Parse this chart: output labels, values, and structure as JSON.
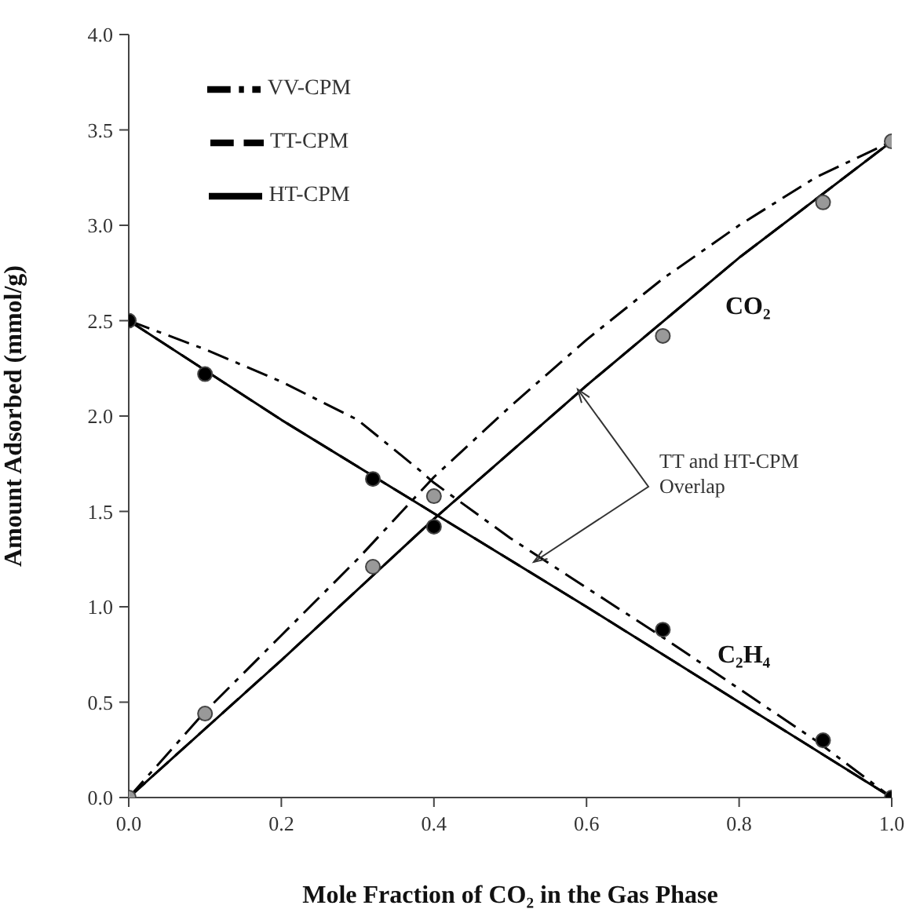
{
  "chart_data": {
    "type": "line",
    "xlabel": "Mole Fraction of CO₂ in the Gas Phase",
    "ylabel": "Amount Adsorbed (mmol/g)",
    "xlim": [
      0,
      1
    ],
    "ylim": [
      0,
      4
    ],
    "xticks": [
      {
        "value": 0,
        "label": "0.0"
      },
      0.2,
      0.4,
      0.6,
      0.8,
      {
        "value": 1,
        "label": "1.0"
      }
    ],
    "yticks": [
      {
        "value": 0,
        "label": "0.0"
      },
      0.5,
      {
        "value": 1,
        "label": "1.0"
      },
      1.5,
      {
        "value": 2,
        "label": "2.0"
      },
      2.5,
      {
        "value": 3,
        "label": "3.0"
      },
      3.5,
      {
        "value": 4,
        "label": "4.0"
      }
    ],
    "grid": false,
    "legend": "top left",
    "marker": "none",
    "series": [
      {
        "name": "VV-CPM",
        "line_style": "dashdot",
        "color": "#000000",
        "x": [
          0,
          0.1,
          0.2,
          0.3,
          0.4,
          0.5,
          0.6,
          0.7,
          0.8,
          0.9,
          1.0
        ],
        "values": [
          0,
          0.45,
          0.85,
          1.25,
          1.68,
          2.05,
          2.4,
          2.72,
          3.0,
          3.25,
          3.44
        ]
      },
      {
        "line_style": "dashdot",
        "color": "#000000",
        "x": [
          0,
          0.1,
          0.2,
          0.3,
          0.38,
          0.4,
          0.5,
          0.6,
          0.7,
          0.8,
          0.9,
          1.0
        ],
        "values": [
          2.5,
          2.35,
          2.18,
          1.98,
          1.72,
          1.65,
          1.36,
          1.1,
          0.84,
          0.57,
          0.3,
          0
        ]
      },
      {
        "name": "TT-CPM",
        "line_style": "dashed",
        "color": "#000000",
        "x": [
          0,
          0.2,
          0.4,
          0.6,
          0.8,
          1.0
        ],
        "values": [
          0,
          0.72,
          1.46,
          2.16,
          2.83,
          3.44
        ]
      },
      {
        "line_style": "dashed",
        "color": "#000000",
        "x": [
          0,
          0.2,
          0.4,
          0.6,
          0.8,
          1.0
        ],
        "values": [
          2.5,
          1.98,
          1.49,
          1.0,
          0.5,
          0
        ]
      },
      {
        "name": "HT-CPM",
        "line_style": "solid",
        "color": "#000000",
        "x": [
          0,
          0.2,
          0.4,
          0.6,
          0.8,
          1.0
        ],
        "values": [
          0,
          0.72,
          1.46,
          2.16,
          2.83,
          3.44
        ]
      },
      {
        "line_style": "solid",
        "color": "#000000",
        "x": [
          0,
          0.2,
          0.4,
          0.6,
          0.8,
          1.0
        ],
        "values": [
          2.5,
          1.98,
          1.49,
          1.0,
          0.5,
          0
        ]
      },
      {
        "type": "scatter",
        "marker": "circle",
        "color": "#999999",
        "x": [
          0,
          0.1,
          0.32,
          0.4,
          0.7,
          0.91,
          1.0
        ],
        "values": [
          0,
          0.44,
          1.21,
          1.58,
          2.42,
          3.12,
          3.44
        ]
      },
      {
        "type": "scatter",
        "marker": "circle",
        "color": "#000000",
        "x": [
          0,
          0.1,
          0.32,
          0.4,
          0.7,
          0.91,
          1.0
        ],
        "values": [
          2.5,
          2.22,
          1.67,
          1.42,
          0.88,
          0.3,
          0
        ]
      }
    ],
    "annotations": [
      "CO₂",
      "C₂H₄",
      "TT and HT-CPM Overlap"
    ]
  }
}
